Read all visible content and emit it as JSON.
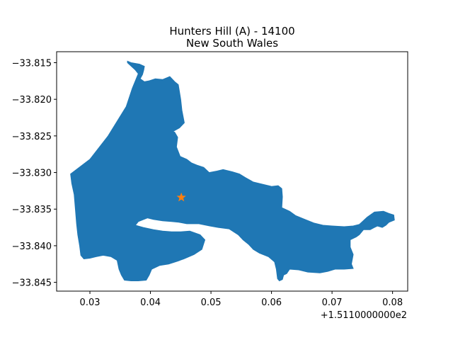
{
  "chart_data": {
    "type": "map",
    "title_line1": "Hunters Hill (A) - 14100",
    "title_line2": "New South Wales",
    "xlim": [
      0.0245,
      0.0825
    ],
    "ylim": [
      -33.8462,
      -33.8135
    ],
    "x_offset_label": "+1.5110000000e2",
    "x_ticks": [
      {
        "value": 0.03,
        "label": "0.03"
      },
      {
        "value": 0.04,
        "label": "0.04"
      },
      {
        "value": 0.05,
        "label": "0.05"
      },
      {
        "value": 0.06,
        "label": "0.06"
      },
      {
        "value": 0.07,
        "label": "0.07"
      },
      {
        "value": 0.08,
        "label": "0.08"
      }
    ],
    "y_ticks": [
      {
        "value": -33.815,
        "label": "−33.815"
      },
      {
        "value": -33.82,
        "label": "−33.820"
      },
      {
        "value": -33.825,
        "label": "−33.825"
      },
      {
        "value": -33.83,
        "label": "−33.830"
      },
      {
        "value": -33.835,
        "label": "−33.835"
      },
      {
        "value": -33.84,
        "label": "−33.840"
      },
      {
        "value": -33.845,
        "label": "−33.845"
      }
    ],
    "region_color": "#1f77b4",
    "marker_color": "#ff7f0e",
    "marker": {
      "x": 0.0451,
      "y": -33.8334,
      "shape": "star"
    },
    "region_outline": [
      [
        0.0268,
        -33.8302
      ],
      [
        0.03,
        -33.8282
      ],
      [
        0.033,
        -33.825
      ],
      [
        0.036,
        -33.821
      ],
      [
        0.037,
        -33.8185
      ],
      [
        0.038,
        -33.8165
      ],
      [
        0.0375,
        -33.816
      ],
      [
        0.0362,
        -33.815
      ],
      [
        0.0362,
        -33.8148
      ],
      [
        0.0368,
        -33.815
      ],
      [
        0.0382,
        -33.8152
      ],
      [
        0.039,
        -33.8155
      ],
      [
        0.0389,
        -33.816
      ],
      [
        0.0387,
        -33.8166
      ],
      [
        0.0383,
        -33.8172
      ],
      [
        0.039,
        -33.8176
      ],
      [
        0.0397,
        -33.8175
      ],
      [
        0.0408,
        -33.8172
      ],
      [
        0.042,
        -33.8173
      ],
      [
        0.0432,
        -33.8169
      ],
      [
        0.044,
        -33.8176
      ],
      [
        0.0446,
        -33.818
      ],
      [
        0.045,
        -33.82
      ],
      [
        0.0452,
        -33.8215
      ],
      [
        0.0456,
        -33.8232
      ],
      [
        0.0448,
        -33.8239
      ],
      [
        0.0437,
        -33.8244
      ],
      [
        0.044,
        -33.8245
      ],
      [
        0.0445,
        -33.8252
      ],
      [
        0.0443,
        -33.8265
      ],
      [
        0.0449,
        -33.8278
      ],
      [
        0.046,
        -33.8282
      ],
      [
        0.0468,
        -33.8287
      ],
      [
        0.0477,
        -33.829
      ],
      [
        0.0488,
        -33.8293
      ],
      [
        0.0497,
        -33.83
      ],
      [
        0.051,
        -33.8298
      ],
      [
        0.052,
        -33.8296
      ],
      [
        0.0535,
        -33.8299
      ],
      [
        0.0547,
        -33.8302
      ],
      [
        0.0557,
        -33.8307
      ],
      [
        0.057,
        -33.8313
      ],
      [
        0.059,
        -33.8317
      ],
      [
        0.06,
        -33.8319
      ],
      [
        0.0611,
        -33.8318
      ],
      [
        0.0617,
        -33.8322
      ],
      [
        0.0618,
        -33.8333
      ],
      [
        0.0617,
        -33.8348
      ],
      [
        0.063,
        -33.8353
      ],
      [
        0.064,
        -33.8359
      ],
      [
        0.0655,
        -33.8364
      ],
      [
        0.067,
        -33.8369
      ],
      [
        0.0685,
        -33.8372
      ],
      [
        0.07,
        -33.8373
      ],
      [
        0.072,
        -33.8374
      ],
      [
        0.0735,
        -33.8373
      ],
      [
        0.0745,
        -33.8371
      ],
      [
        0.0758,
        -33.8361
      ],
      [
        0.077,
        -33.8354
      ],
      [
        0.0785,
        -33.8353
      ],
      [
        0.0794,
        -33.8356
      ],
      [
        0.0802,
        -33.8358
      ],
      [
        0.0803,
        -33.8365
      ],
      [
        0.0794,
        -33.8368
      ],
      [
        0.0789,
        -33.8372
      ],
      [
        0.0783,
        -33.8375
      ],
      [
        0.0775,
        -33.8373
      ],
      [
        0.077,
        -33.8375
      ],
      [
        0.0763,
        -33.8378
      ],
      [
        0.0752,
        -33.8378
      ],
      [
        0.0745,
        -33.8385
      ],
      [
        0.074,
        -33.8388
      ],
      [
        0.073,
        -33.8392
      ],
      [
        0.073,
        -33.8402
      ],
      [
        0.0735,
        -33.8412
      ],
      [
        0.0732,
        -33.8425
      ],
      [
        0.0735,
        -33.8431
      ],
      [
        0.072,
        -33.8432
      ],
      [
        0.0705,
        -33.8432
      ],
      [
        0.0693,
        -33.8435
      ],
      [
        0.068,
        -33.8437
      ],
      [
        0.066,
        -33.8436
      ],
      [
        0.0645,
        -33.8433
      ],
      [
        0.063,
        -33.8432
      ],
      [
        0.0625,
        -33.8438
      ],
      [
        0.062,
        -33.844
      ],
      [
        0.0618,
        -33.8446
      ],
      [
        0.0613,
        -33.8448
      ],
      [
        0.061,
        -33.8445
      ],
      [
        0.0608,
        -33.8432
      ],
      [
        0.0605,
        -33.8422
      ],
      [
        0.0595,
        -33.8415
      ],
      [
        0.058,
        -33.841
      ],
      [
        0.057,
        -33.8405
      ],
      [
        0.0562,
        -33.8398
      ],
      [
        0.0553,
        -33.8392
      ],
      [
        0.0545,
        -33.8385
      ],
      [
        0.053,
        -33.8377
      ],
      [
        0.0512,
        -33.8375
      ],
      [
        0.0498,
        -33.8373
      ],
      [
        0.048,
        -33.837
      ],
      [
        0.046,
        -33.837
      ],
      [
        0.0447,
        -33.8368
      ],
      [
        0.0435,
        -33.8367
      ],
      [
        0.042,
        -33.8366
      ],
      [
        0.0405,
        -33.8364
      ],
      [
        0.0395,
        -33.8362
      ],
      [
        0.038,
        -33.8367
      ],
      [
        0.0375,
        -33.8372
      ],
      [
        0.0388,
        -33.8375
      ],
      [
        0.0405,
        -33.8378
      ],
      [
        0.042,
        -33.838
      ],
      [
        0.0435,
        -33.8381
      ],
      [
        0.045,
        -33.8381
      ],
      [
        0.0465,
        -33.838
      ],
      [
        0.0482,
        -33.8385
      ],
      [
        0.049,
        -33.8392
      ],
      [
        0.0485,
        -33.8405
      ],
      [
        0.0472,
        -33.8412
      ],
      [
        0.0455,
        -33.8418
      ],
      [
        0.0445,
        -33.8421
      ],
      [
        0.043,
        -33.8425
      ],
      [
        0.0415,
        -33.8427
      ],
      [
        0.0402,
        -33.8432
      ],
      [
        0.0398,
        -33.844
      ],
      [
        0.0393,
        -33.8447
      ],
      [
        0.038,
        -33.8448
      ],
      [
        0.0368,
        -33.8448
      ],
      [
        0.0357,
        -33.8447
      ],
      [
        0.0352,
        -33.844
      ],
      [
        0.0348,
        -33.8432
      ],
      [
        0.0345,
        -33.842
      ],
      [
        0.0335,
        -33.8415
      ],
      [
        0.0322,
        -33.8413
      ],
      [
        0.031,
        -33.8415
      ],
      [
        0.03,
        -33.8417
      ],
      [
        0.029,
        -33.8418
      ],
      [
        0.0285,
        -33.8413
      ],
      [
        0.0283,
        -33.84
      ],
      [
        0.028,
        -33.8385
      ],
      [
        0.0278,
        -33.837
      ],
      [
        0.0276,
        -33.835
      ],
      [
        0.0274,
        -33.833
      ],
      [
        0.027,
        -33.8315
      ],
      [
        0.0268,
        -33.8302
      ]
    ]
  }
}
